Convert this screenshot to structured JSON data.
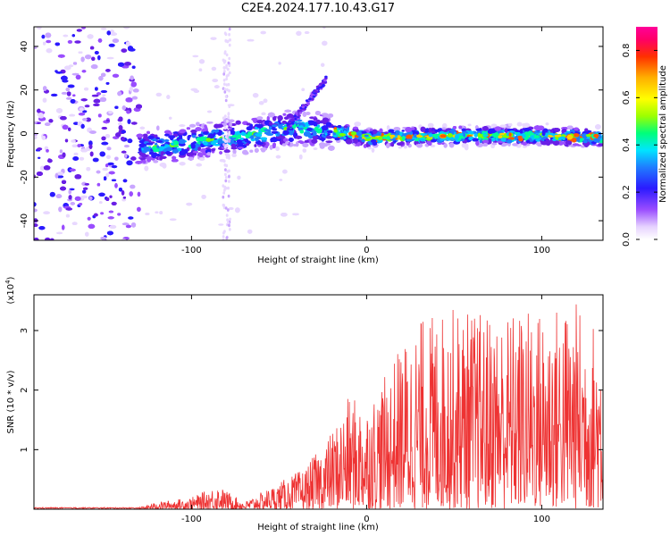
{
  "title": "C2E4.2024.177.10.43.G17",
  "chart_data": [
    {
      "type": "heatmap",
      "xlabel": "Height of straight line (km)",
      "ylabel": "Frequency (Hz)",
      "xlim": [
        -190,
        135
      ],
      "ylim": [
        -49,
        49
      ],
      "xticks": [
        -100,
        0,
        100
      ],
      "yticks": [
        -40,
        -20,
        0,
        20,
        40
      ],
      "colorbar": {
        "label": "Normalized spectral amplitude",
        "range": [
          0,
          0.9
        ],
        "ticks": [
          0.0,
          0.2,
          0.4,
          0.6,
          0.8
        ]
      },
      "ridge": {
        "description_points": [
          [
            -160,
            -7
          ],
          [
            -120,
            -6
          ],
          [
            -100,
            -4
          ],
          [
            -80,
            -2
          ],
          [
            -60,
            0
          ],
          [
            -40,
            3
          ],
          [
            -20,
            1
          ],
          [
            0,
            -2
          ],
          [
            50,
            -1
          ],
          [
            100,
            -1
          ],
          [
            135,
            -2
          ]
        ]
      }
    },
    {
      "type": "line",
      "xlabel": "Height of straight line (km)",
      "ylabel": "SNR (10 * v/v)",
      "yscale_label": "(x10",
      "yscale_exp": "4",
      "xlim": [
        -190,
        135
      ],
      "ylim": [
        0,
        3.6
      ],
      "xticks": [
        -100,
        0,
        100
      ],
      "yticks": [
        1,
        2,
        3
      ],
      "color": "#ee3333",
      "envelope": {
        "x": [
          -190,
          -130,
          -120,
          -100,
          -85,
          -70,
          -50,
          -35,
          -20,
          -10,
          0,
          10,
          20,
          30,
          50,
          70,
          100,
          120,
          135
        ],
        "y": [
          0.02,
          0.03,
          0.12,
          0.2,
          0.4,
          0.12,
          0.45,
          0.7,
          1.3,
          1.9,
          1.8,
          2.2,
          2.8,
          3.2,
          3.4,
          3.3,
          3.4,
          3.5,
          3.0
        ]
      }
    }
  ]
}
